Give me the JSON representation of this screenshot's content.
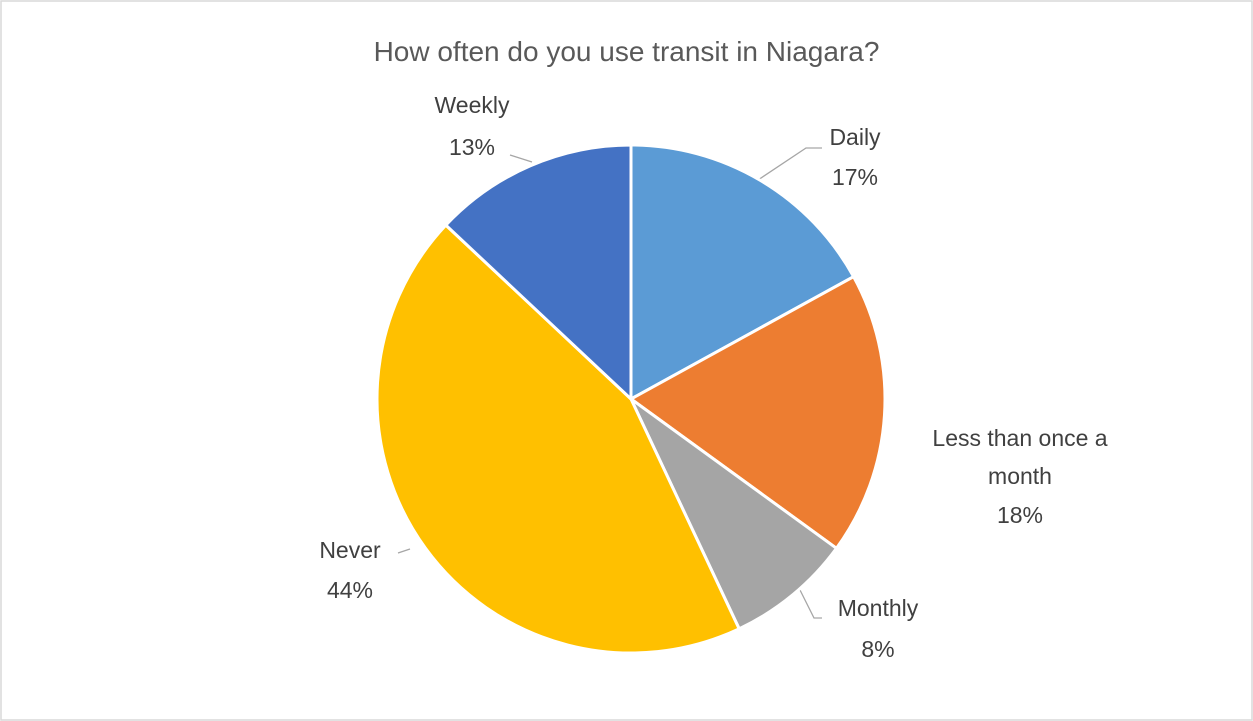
{
  "chart_data": {
    "type": "pie",
    "title": "How often do you use transit in Niagara?",
    "categories": [
      "Daily",
      "Less than once a month",
      "Monthly",
      "Never",
      "Weekly"
    ],
    "values": [
      17,
      18,
      8,
      44,
      13
    ],
    "value_labels": [
      "17%",
      "18%",
      "8%",
      "44%",
      "13%"
    ],
    "colors": [
      "#5b9bd5",
      "#ed7d31",
      "#a5a5a5",
      "#ffc000",
      "#4472c4"
    ]
  }
}
